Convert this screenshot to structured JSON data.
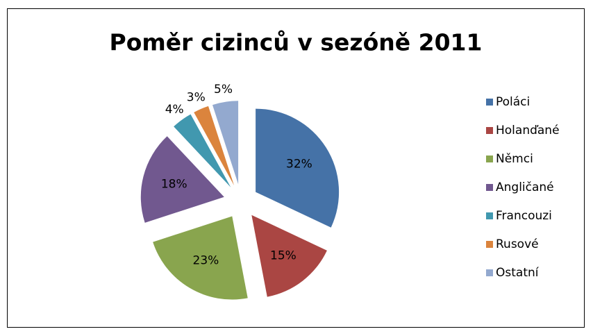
{
  "chart_data": {
    "type": "pie",
    "title": "Poměr cizinců v sezóně 2011",
    "categories": [
      "Poláci",
      "Holanďané",
      "Němci",
      "Angličané",
      "Francouzi",
      "Rusové",
      "Ostatní"
    ],
    "values": [
      32,
      15,
      23,
      18,
      4,
      3,
      5
    ],
    "value_labels": [
      "32%",
      "15%",
      "23%",
      "18%",
      "4%",
      "3%",
      "5%"
    ],
    "colors": [
      "#4572a7",
      "#aa4643",
      "#89a54e",
      "#71588f",
      "#4198af",
      "#db843d",
      "#93a9cf"
    ],
    "legend": "right"
  }
}
